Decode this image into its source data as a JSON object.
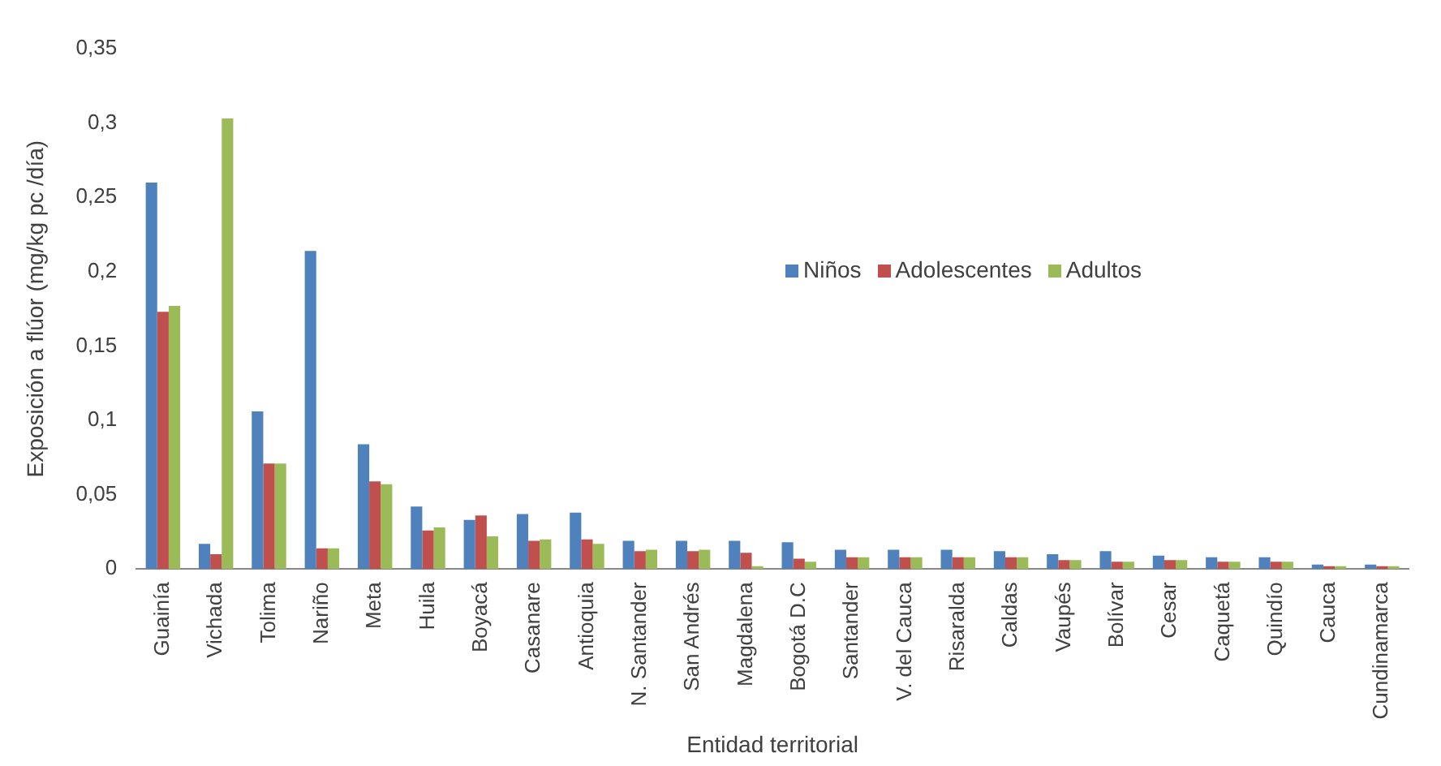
{
  "chart_data": {
    "type": "bar",
    "xlabel": "Entidad territorial",
    "ylabel": "Exposición a flúor (mg/kg pc /día)",
    "categories": [
      "Guainía",
      "Vichada",
      "Tolima",
      "Nariño",
      "Meta",
      "Huila",
      "Boyacá",
      "Casanare",
      "Antioquia",
      "N. Santander",
      "San Andrés",
      "Magdalena",
      "Bogotá D.C",
      "Santander",
      "V. del Cauca",
      "Risaralda",
      "Caldas",
      "Vaupés",
      "Bolívar",
      "Cesar",
      "Caquetá",
      "Quindío",
      "Cauca",
      "Cundinamarca"
    ],
    "series": [
      {
        "name": "Niños",
        "color": "#4f81bd",
        "values": [
          0.26,
          0.017,
          0.106,
          0.214,
          0.084,
          0.042,
          0.033,
          0.037,
          0.038,
          0.019,
          0.019,
          0.019,
          0.018,
          0.013,
          0.013,
          0.013,
          0.012,
          0.01,
          0.012,
          0.009,
          0.008,
          0.008,
          0.003,
          0.003
        ]
      },
      {
        "name": "Adolescentes",
        "color": "#c0504d",
        "values": [
          0.173,
          0.01,
          0.071,
          0.014,
          0.059,
          0.026,
          0.036,
          0.019,
          0.02,
          0.012,
          0.012,
          0.011,
          0.007,
          0.008,
          0.008,
          0.008,
          0.008,
          0.006,
          0.005,
          0.006,
          0.005,
          0.005,
          0.002,
          0.002
        ]
      },
      {
        "name": "Adultos",
        "color": "#9bbb59",
        "values": [
          0.177,
          0.303,
          0.071,
          0.014,
          0.057,
          0.028,
          0.022,
          0.02,
          0.017,
          0.013,
          0.013,
          0.002,
          0.005,
          0.008,
          0.008,
          0.008,
          0.008,
          0.006,
          0.005,
          0.006,
          0.005,
          0.005,
          0.002,
          0.002
        ]
      }
    ],
    "ylim": [
      0,
      0.35
    ],
    "yticks": [
      {
        "value": 0,
        "label": "0"
      },
      {
        "value": 0.05,
        "label": "0,05"
      },
      {
        "value": 0.1,
        "label": "0,1"
      },
      {
        "value": 0.15,
        "label": "0,15"
      },
      {
        "value": 0.2,
        "label": "0,2"
      },
      {
        "value": 0.25,
        "label": "0,25"
      },
      {
        "value": 0.3,
        "label": "0,3"
      },
      {
        "value": 0.35,
        "label": "0,35"
      }
    ],
    "grid": false,
    "legend": "center"
  }
}
